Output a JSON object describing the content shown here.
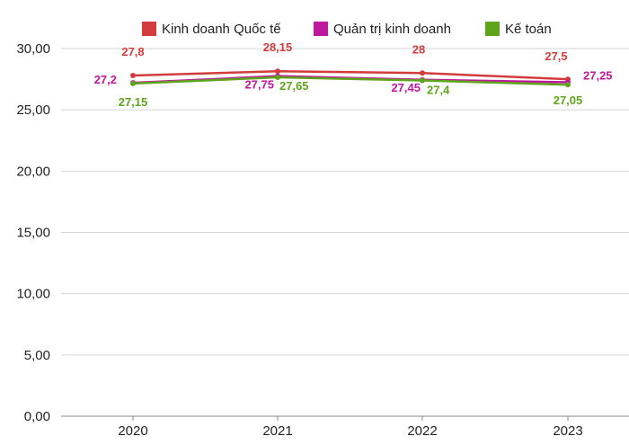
{
  "chart_data": {
    "type": "line",
    "title": "",
    "xlabel": "",
    "ylabel": "",
    "categories": [
      "2020",
      "2021",
      "2022",
      "2023"
    ],
    "ylim": [
      0,
      30
    ],
    "yticks": [
      "0,00",
      "5,00",
      "10,00",
      "15,00",
      "20,00",
      "25,00",
      "30,00"
    ],
    "grid": true,
    "legend_position": "top",
    "series": [
      {
        "name": "Kinh doanh Quốc tế",
        "values": [
          27.8,
          28.15,
          28,
          27.5
        ],
        "labels": [
          "27,8",
          "28,15",
          "28",
          "27,5"
        ],
        "color": "#d23c3c"
      },
      {
        "name": "Quản trị kinh doanh",
        "values": [
          27.2,
          27.75,
          27.45,
          27.25
        ],
        "labels": [
          "27,2",
          "27,75",
          "27,45",
          "27,25"
        ],
        "color": "#c0179e"
      },
      {
        "name": "Kế toán",
        "values": [
          27.15,
          27.65,
          27.4,
          27.05
        ],
        "labels": [
          "27,15",
          "27,65",
          "27,4",
          "27,05"
        ],
        "color": "#5ea51b"
      }
    ]
  }
}
